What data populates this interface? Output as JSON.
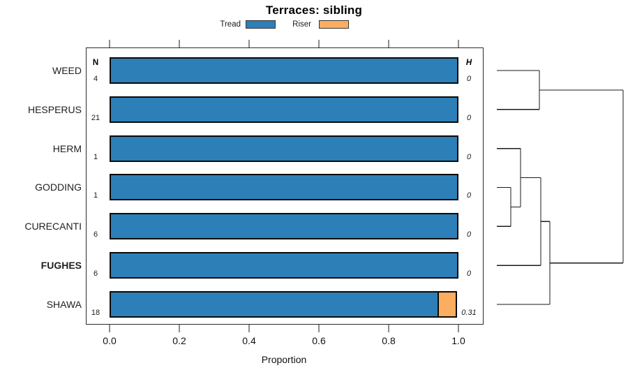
{
  "title": "Terraces: sibling",
  "legend": {
    "items": [
      {
        "label": "Tread",
        "color": "#2d7fb8"
      },
      {
        "label": "Riser",
        "color": "#fcad60"
      }
    ]
  },
  "columns": {
    "n_header": "N",
    "h_header": "H"
  },
  "axis": {
    "xlabel": "Proportion",
    "xtick_labels": [
      "0.0",
      "0.2",
      "0.4",
      "0.6",
      "0.8",
      "1.0"
    ],
    "xtick_values": [
      0,
      0.2,
      0.4,
      0.6,
      0.8,
      1.0
    ],
    "xlim": [
      0,
      1
    ]
  },
  "chart_data": {
    "type": "bar",
    "orientation": "horizontal-stacked",
    "title": "Terraces: sibling",
    "xlabel": "Proportion",
    "xlim": [
      0,
      1
    ],
    "grid": false,
    "legend_position": "top-center",
    "categories": [
      "WEED",
      "HESPERUS",
      "HERM",
      "GODDING",
      "CURECANTI",
      "FUGHES",
      "SHAWA"
    ],
    "bold_categories": [
      "FUGHES"
    ],
    "n_values": [
      "4",
      "21",
      "1",
      "1",
      "6",
      "6",
      "18"
    ],
    "h_values": [
      "0",
      "0",
      "0",
      "0",
      "0",
      "0",
      "0.31"
    ],
    "series": [
      {
        "name": "Tread",
        "color": "#2d7fb8",
        "values": [
          1,
          1,
          1,
          1,
          1,
          1,
          0.944
        ]
      },
      {
        "name": "Riser",
        "color": "#fcad60",
        "values": [
          0,
          0,
          0,
          0,
          0,
          0,
          0.056
        ]
      }
    ],
    "dendrogram": {
      "leaves": [
        "WEED",
        "HESPERUS",
        "HERM",
        "GODDING",
        "CURECANTI",
        "FUGHES",
        "SHAWA"
      ],
      "leaf_x": 712,
      "merges": [
        {
          "a": "L0",
          "b": "L1",
          "x": 773
        },
        {
          "a": "L3",
          "b": "L4",
          "x": 732
        },
        {
          "a": "L2",
          "b": "M1",
          "x": 746
        },
        {
          "a": "M2",
          "b": "L5",
          "x": 775
        },
        {
          "a": "M3",
          "b": "L6",
          "x": 788
        },
        {
          "a": "M0",
          "b": "M4",
          "x": 893
        }
      ]
    }
  }
}
